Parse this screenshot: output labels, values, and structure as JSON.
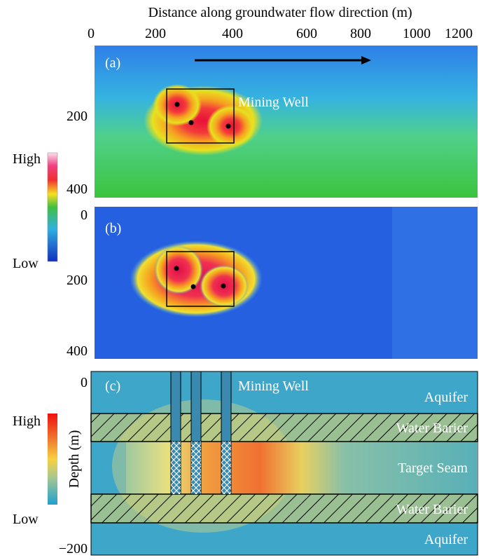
{
  "top_axis": {
    "title": "Distance along groundwater flow direction (m)",
    "ticks": [
      "0",
      "200",
      "400",
      "600",
      "800",
      "1000",
      "1200"
    ]
  },
  "panel_a": {
    "label": "(a)",
    "annotation": "Mining Well",
    "y_ticks": [
      "200",
      "400"
    ]
  },
  "colorbar_top": {
    "high": "High",
    "low": "Low"
  },
  "panel_b": {
    "label": "(b)",
    "y_ticks": [
      "0",
      "200",
      "400"
    ]
  },
  "panel_c": {
    "label": "(c)",
    "annotation": "Mining Well",
    "y_axis_title": "Depth (m)",
    "y_ticks": [
      "0",
      "−200"
    ],
    "layers": [
      "Aquifer",
      "Water Barier",
      "Target Seam",
      "Water Barier",
      "Aquifer"
    ]
  },
  "colorbar_bottom": {
    "high": "High",
    "low": "Low"
  }
}
